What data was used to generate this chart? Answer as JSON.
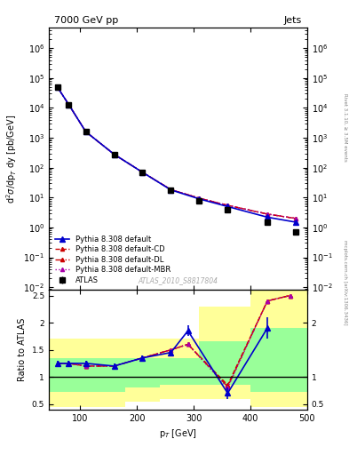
{
  "title": "7000 GeV pp",
  "title_right": "Jets",
  "ylabel_top": "d$^2\\sigma$/dp$_T$ dy [pb/GeV]",
  "ylabel_bottom": "Ratio to ATLAS",
  "xlabel": "p$_T$ [GeV]",
  "watermark": "ATLAS_2010_S8817804",
  "rivet_label": "Rivet 3.1.10, ≥ 3.5M events",
  "arxiv_label": "mcplots.cern.ch [arXiv:1306.3436]",
  "atlas_pt": [
    60,
    80,
    110,
    160,
    210,
    260,
    310,
    360,
    430,
    480
  ],
  "atlas_vals": [
    50000.0,
    13000.0,
    1600,
    280,
    70,
    18,
    8,
    4,
    1.5,
    0.7
  ],
  "atlas_err_lo": [
    5000,
    1300,
    160,
    28,
    7,
    1.8,
    0.8,
    0.4,
    0.15,
    0.07
  ],
  "atlas_err_hi": [
    5000,
    1300,
    160,
    28,
    7,
    1.8,
    0.8,
    0.4,
    0.15,
    0.07
  ],
  "pythia_pt": [
    60,
    80,
    110,
    160,
    210,
    260,
    310,
    360,
    430,
    480
  ],
  "pythia_default": [
    50000.0,
    13000.0,
    1600,
    280,
    70,
    18,
    9,
    5,
    2.2,
    1.5
  ],
  "pythia_cd": [
    50000.0,
    13000.0,
    1600,
    280,
    70,
    18.5,
    9.5,
    5.5,
    2.8,
    2.0
  ],
  "pythia_dl": [
    50000.0,
    13000.0,
    1600,
    280,
    70,
    18.5,
    9.5,
    5.5,
    2.8,
    2.0
  ],
  "pythia_mbr": [
    50000.0,
    13000.0,
    1600,
    280,
    70,
    18.5,
    9.5,
    5.5,
    2.8,
    2.0
  ],
  "ratio_pt": [
    60,
    80,
    110,
    160,
    210,
    260,
    290,
    360,
    430,
    470
  ],
  "ratio_default": [
    1.25,
    1.25,
    1.25,
    1.2,
    1.35,
    1.45,
    1.85,
    0.7,
    1.9,
    null
  ],
  "ratio_cd": [
    1.25,
    1.25,
    1.2,
    1.2,
    1.35,
    1.5,
    1.6,
    0.85,
    2.4,
    2.5
  ],
  "ratio_dl": [
    1.25,
    1.25,
    1.2,
    1.2,
    1.35,
    1.5,
    1.6,
    0.82,
    2.4,
    2.5
  ],
  "ratio_mbr": [
    1.25,
    1.25,
    1.2,
    1.2,
    1.35,
    1.5,
    1.6,
    0.8,
    2.4,
    2.5
  ],
  "ratio_default_err_lo": [
    0.05,
    0.05,
    0.05,
    0.05,
    0.05,
    0.05,
    0.1,
    0.1,
    0.2,
    0.2
  ],
  "ratio_default_err_hi": [
    0.05,
    0.05,
    0.05,
    0.05,
    0.05,
    0.05,
    0.1,
    0.1,
    0.2,
    0.2
  ],
  "yellow_band_x": [
    45,
    60,
    80,
    130,
    180,
    240,
    310,
    400,
    500
  ],
  "yellow_band_lo": [
    0.45,
    0.45,
    0.45,
    0.45,
    0.55,
    0.6,
    0.6,
    0.45,
    0.45
  ],
  "yellow_band_hi": [
    1.7,
    1.7,
    1.7,
    1.7,
    1.7,
    1.7,
    2.3,
    2.6,
    2.6
  ],
  "green_band_x": [
    45,
    60,
    80,
    130,
    180,
    240,
    310,
    400,
    500
  ],
  "green_band_lo": [
    0.72,
    0.72,
    0.72,
    0.72,
    0.8,
    0.85,
    0.85,
    0.72,
    0.72
  ],
  "green_band_hi": [
    1.35,
    1.35,
    1.35,
    1.35,
    1.35,
    1.35,
    1.65,
    1.9,
    1.9
  ],
  "color_default": "#0000cc",
  "color_cd": "#cc0000",
  "color_dl": "#cc0000",
  "color_mbr": "#aa00aa",
  "color_yellow": "#ffff99",
  "color_green": "#99ff99"
}
